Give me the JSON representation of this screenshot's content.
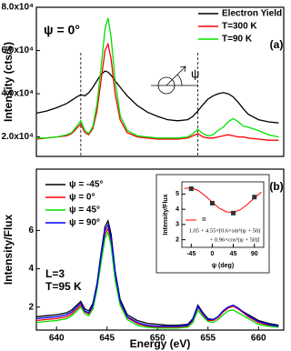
{
  "chart_data": [
    {
      "type": "line",
      "ylabel": "Intensity (cts/s)",
      "note": "ψ = 0°",
      "panel_label": "(a)",
      "psi_symbol": "ψ",
      "xlim": [
        638,
        662.5
      ],
      "ylim": [
        11000,
        80000
      ],
      "yticks": [
        {
          "value": 20000,
          "label": "2.0x10⁴"
        },
        {
          "value": 40000,
          "label": "4.0x10⁴"
        },
        {
          "value": 60000,
          "label": "6.0x10⁴"
        },
        {
          "value": 80000,
          "label": "8.0x10⁴"
        }
      ],
      "vlines": [
        642.4,
        654.0
      ],
      "x": [
        638,
        639,
        640,
        641,
        641.5,
        642,
        642.4,
        642.8,
        643.2,
        643.6,
        644,
        644.4,
        644.8,
        645.1,
        645.4,
        645.8,
        646.3,
        647,
        648,
        649,
        650,
        651,
        652,
        653,
        653.5,
        654,
        654.5,
        655,
        655.5,
        656,
        656.5,
        657,
        657.5,
        658,
        658.5,
        659,
        660,
        661,
        662
      ],
      "series": [
        {
          "name": "Electron Yield",
          "color": "#000000",
          "values": [
            31000,
            32000,
            33500,
            35500,
            37000,
            38500,
            39500,
            39000,
            40500,
            43000,
            46000,
            49000,
            50500,
            50000,
            48500,
            46000,
            43000,
            39000,
            34500,
            31500,
            29500,
            28000,
            27500,
            28000,
            29500,
            32000,
            35000,
            37500,
            39000,
            40000,
            40500,
            40000,
            38500,
            36000,
            33000,
            30500,
            28000,
            27000,
            26500
          ]
        },
        {
          "name": "T=300 K",
          "color": "#ff0000",
          "values": [
            19000,
            19500,
            20000,
            20500,
            21500,
            24000,
            26000,
            22000,
            21000,
            24000,
            32000,
            46000,
            60000,
            63000,
            56000,
            40000,
            28000,
            22000,
            20000,
            19500,
            19000,
            19000,
            19000,
            19500,
            20500,
            21500,
            20000,
            19500,
            19500,
            20000,
            20500,
            21000,
            20500,
            20000,
            20000,
            19500,
            19000,
            18500,
            18500
          ]
        },
        {
          "name": "T=90 K",
          "color": "#00e000",
          "values": [
            19500,
            19500,
            20000,
            21000,
            22000,
            25000,
            27500,
            23000,
            21500,
            25000,
            35000,
            52000,
            70000,
            75000,
            66000,
            46000,
            30000,
            23000,
            20500,
            20000,
            19500,
            19500,
            19500,
            20000,
            21500,
            23500,
            21500,
            20500,
            21000,
            23000,
            24500,
            27000,
            28500,
            27000,
            25000,
            24500,
            23000,
            21000,
            20000
          ]
        }
      ]
    },
    {
      "type": "line",
      "ylabel": "Intensity/Flux",
      "xlabel": "Energy (eV)",
      "panel_label": "(b)",
      "notes": [
        "L=3",
        "T=95 K"
      ],
      "xlim": [
        638,
        662.5
      ],
      "ylim": [
        0.8,
        9.2
      ],
      "xticks": [
        640,
        645,
        650,
        655,
        660
      ],
      "yticks": [
        2,
        4,
        6
      ],
      "x": [
        638,
        639,
        640,
        641,
        641.5,
        642,
        642.4,
        642.8,
        643.2,
        643.6,
        644,
        644.4,
        644.8,
        645.1,
        645.4,
        645.8,
        646.3,
        647,
        648,
        649,
        650,
        651,
        652,
        653,
        653.5,
        654,
        654.5,
        655,
        655.5,
        656,
        656.5,
        657,
        657.5,
        658,
        658.5,
        659,
        660,
        661,
        662
      ],
      "series": [
        {
          "name": "ψ = -45°",
          "color": "#000000",
          "values": [
            1.5,
            1.55,
            1.6,
            1.7,
            1.85,
            2.1,
            2.3,
            1.9,
            1.8,
            2.2,
            3.2,
            4.8,
            6.2,
            6.5,
            5.8,
            3.9,
            2.4,
            1.6,
            1.3,
            1.15,
            1.1,
            1.05,
            1.05,
            1.1,
            1.4,
            2.1,
            1.7,
            1.4,
            1.35,
            1.5,
            1.8,
            2.0,
            2.05,
            1.9,
            1.75,
            1.6,
            1.3,
            1.15,
            1.05
          ]
        },
        {
          "name": "ψ = 0°",
          "color": "#ff0000",
          "values": [
            1.3,
            1.35,
            1.4,
            1.5,
            1.65,
            1.9,
            2.1,
            1.75,
            1.65,
            2.0,
            3.0,
            4.5,
            5.8,
            6.1,
            5.4,
            3.6,
            2.2,
            1.45,
            1.15,
            1.0,
            0.95,
            0.95,
            0.95,
            1.0,
            1.3,
            2.0,
            1.6,
            1.3,
            1.3,
            1.45,
            1.75,
            1.95,
            2.05,
            1.9,
            1.7,
            1.5,
            1.2,
            1.05,
            1.0
          ]
        },
        {
          "name": "ψ = 45°",
          "color": "#00e000",
          "values": [
            1.2,
            1.25,
            1.3,
            1.4,
            1.55,
            1.8,
            2.0,
            1.65,
            1.55,
            1.9,
            2.9,
            4.3,
            5.6,
            5.9,
            5.2,
            3.4,
            2.1,
            1.35,
            1.05,
            0.95,
            0.9,
            0.9,
            0.9,
            0.95,
            1.2,
            1.85,
            1.5,
            1.25,
            1.2,
            1.35,
            1.6,
            1.8,
            1.85,
            1.7,
            1.55,
            1.4,
            1.1,
            1.0,
            0.95
          ]
        },
        {
          "name": "ψ = 90°",
          "color": "#0000ff",
          "values": [
            1.4,
            1.45,
            1.5,
            1.6,
            1.75,
            2.0,
            2.2,
            1.8,
            1.7,
            2.1,
            3.1,
            4.7,
            6.0,
            6.3,
            5.6,
            3.8,
            2.3,
            1.5,
            1.2,
            1.05,
            1.0,
            1.0,
            1.0,
            1.05,
            1.35,
            2.05,
            1.65,
            1.35,
            1.35,
            1.5,
            1.8,
            2.0,
            2.1,
            1.95,
            1.75,
            1.55,
            1.25,
            1.1,
            1.0
          ]
        }
      ]
    },
    {
      "type": "scatter",
      "xlabel": "ψ (deg)",
      "ylabel": "Intensity/Flux",
      "xlim": [
        -65,
        110
      ],
      "ylim": [
        1.5,
        5.8
      ],
      "xticks": [
        -45,
        0,
        45,
        90
      ],
      "yticks": [
        2,
        3,
        4,
        5
      ],
      "x": [
        -45,
        0,
        45,
        90
      ],
      "values": [
        5.35,
        4.4,
        3.75,
        4.8
      ],
      "color": "#333333",
      "fit": {
        "name": "=",
        "color": "#ff0000",
        "x": [
          -60,
          -45,
          -30,
          -15,
          0,
          15,
          30,
          45,
          60,
          75,
          90,
          105
        ],
        "values": [
          5.37,
          5.41,
          5.23,
          4.88,
          4.46,
          4.07,
          3.83,
          3.79,
          3.97,
          4.32,
          4.74,
          5.13
        ]
      },
      "formula": [
        "1.05 + 4.55×[0.6×sin²(ψ + 50)",
        "+ 0.96×cos²(ψ + 50)]"
      ]
    }
  ]
}
